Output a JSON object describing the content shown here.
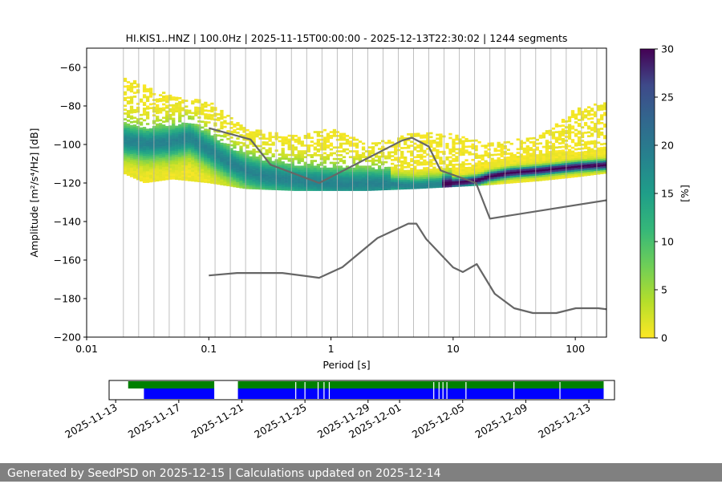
{
  "chart_data": [
    {
      "type": "heatmap",
      "title": "HI.KIS1..HNZ | 100.0Hz | 2025-11-15T00:00:00 - 2025-12-13T22:30:02 | 1244 segments",
      "xlabel": "Period [s]",
      "ylabel": "Amplitude [m²/s⁴/Hz] [dB]",
      "x_scale": "log",
      "xlim": [
        0.01,
        180
      ],
      "ylim": [
        -200,
        -50
      ],
      "x_ticks": [
        "0.01",
        "0.1",
        "1",
        "10",
        "100"
      ],
      "y_ticks": [
        "−60",
        "−80",
        "−100",
        "−120",
        "−140",
        "−160",
        "−180",
        "−200"
      ],
      "grid": "vertical lines at period bin edges",
      "colormap": "viridis_r",
      "colorbar": {
        "label": "[%]",
        "range": [
          0,
          30
        ],
        "ticks": [
          "0",
          "5",
          "10",
          "15",
          "20",
          "25",
          "30"
        ]
      },
      "mode_curve": {
        "period": [
          0.02,
          0.03,
          0.05,
          0.07,
          0.1,
          0.15,
          0.2,
          0.3,
          0.5,
          0.8,
          1.5,
          3,
          5,
          8,
          12,
          16,
          20,
          30,
          50,
          100,
          180
        ],
        "amplitude": [
          -98,
          -100,
          -99,
          -97,
          -103,
          -110,
          -114,
          -117,
          -119,
          -120,
          -121,
          -121,
          -122,
          -121,
          -120,
          -119,
          -117,
          -115,
          -114,
          -112,
          -111
        ]
      },
      "density_envelope": {
        "period": [
          0.02,
          0.03,
          0.05,
          0.1,
          0.2,
          0.5,
          1,
          2,
          5,
          10,
          20,
          50,
          100,
          180
        ],
        "upper": [
          -65,
          -70,
          -75,
          -78,
          -92,
          -96,
          -92,
          -100,
          -94,
          -95,
          -100,
          -96,
          -82,
          -78
        ],
        "lower": [
          -115,
          -120,
          -118,
          -120,
          -123,
          -124,
          -124,
          -124,
          -123,
          -122,
          -121,
          -119,
          -117,
          -115
        ]
      },
      "reference_curves": [
        {
          "name": "NHNM",
          "period": [
            0.1,
            0.22,
            0.32,
            0.8,
            3.8,
            4.6,
            6.3,
            7.9,
            15.4,
            20,
            354.8
          ],
          "amplitude": [
            -91.5,
            -97.4,
            -110.5,
            -120,
            -98,
            -96.5,
            -101,
            -113.5,
            -120,
            -138.5,
            -126
          ]
        },
        {
          "name": "NLNM",
          "period": [
            0.1,
            0.17,
            0.4,
            0.8,
            1.24,
            2.4,
            4.3,
            5,
            6,
            10,
            12,
            15.6,
            21.9,
            31.6,
            45,
            70,
            101,
            154,
            328
          ],
          "amplitude": [
            -168,
            -166.7,
            -166.7,
            -169.2,
            -163.7,
            -148.6,
            -141.1,
            -141.1,
            -149,
            -163.8,
            -166.2,
            -162.1,
            -177.5,
            -185,
            -187.5,
            -187.5,
            -185,
            -185,
            -187.5
          ]
        }
      ]
    },
    {
      "type": "timeline",
      "date_ticks": [
        "2025-11-13",
        "2025-11-17",
        "2025-11-21",
        "2025-11-25",
        "2025-11-29",
        "2025-12-01",
        "2025-12-05",
        "2025-12-09",
        "2025-12-13"
      ],
      "range": [
        "2025-11-12T14:00:00",
        "2025-12-14T15:00:00"
      ],
      "available_data": [
        [
          "2025-11-13T19:00:00",
          "2025-11-19T06:00:00"
        ],
        [
          "2025-11-20T18:00:00",
          "2025-12-13T22:30:00"
        ]
      ],
      "psd_coverage": [
        [
          "2025-11-14T19:00:00",
          "2025-11-19T06:00:00"
        ],
        [
          "2025-11-20T18:00:00",
          "2025-12-13T22:30:00"
        ]
      ],
      "coverage_gaps": [
        "2025-11-24T10:00:00",
        "2025-11-25T00:00:00",
        "2025-11-25T20:00:00",
        "2025-11-26T05:00:00",
        "2025-11-26T13:00:00",
        "2025-12-03T04:00:00",
        "2025-12-03T12:00:00",
        "2025-12-03T18:00:00",
        "2025-12-04T00:00:00",
        "2025-12-05T05:00:00",
        "2025-12-08T06:00:00",
        "2025-12-11T04:00:00"
      ],
      "colors": {
        "available_data": "#008000",
        "psd_coverage": "#0000ff"
      }
    }
  ],
  "footer": {
    "text": "Generated by SeedPSD on 2025-12-15 | Calculations updated on 2025-12-14"
  }
}
